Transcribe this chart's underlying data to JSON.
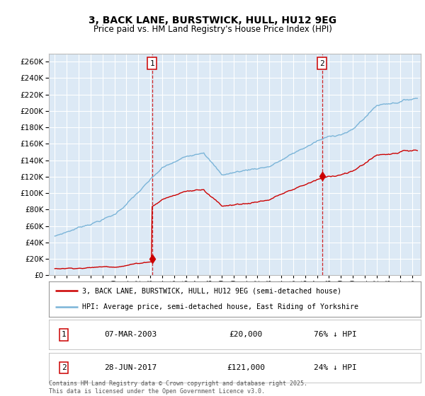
{
  "title": "3, BACK LANE, BURSTWICK, HULL, HU12 9EG",
  "subtitle": "Price paid vs. HM Land Registry's House Price Index (HPI)",
  "ylim": [
    0,
    270000
  ],
  "yticks": [
    0,
    20000,
    40000,
    60000,
    80000,
    100000,
    120000,
    140000,
    160000,
    180000,
    200000,
    220000,
    240000,
    260000
  ],
  "background_color": "#dce9f5",
  "fig_color": "#ffffff",
  "grid_color": "#ffffff",
  "red_color": "#cc0000",
  "blue_color": "#7ab4d8",
  "purchase1_date": "07-MAR-2003",
  "purchase1_price": 20000,
  "purchase1_pct": "76% ↓ HPI",
  "purchase2_date": "28-JUN-2017",
  "purchase2_price": 121000,
  "purchase2_pct": "24% ↓ HPI",
  "legend_line1": "3, BACK LANE, BURSTWICK, HULL, HU12 9EG (semi-detached house)",
  "legend_line2": "HPI: Average price, semi-detached house, East Riding of Yorkshire",
  "footer": "Contains HM Land Registry data © Crown copyright and database right 2025.\nThis data is licensed under the Open Government Licence v3.0."
}
